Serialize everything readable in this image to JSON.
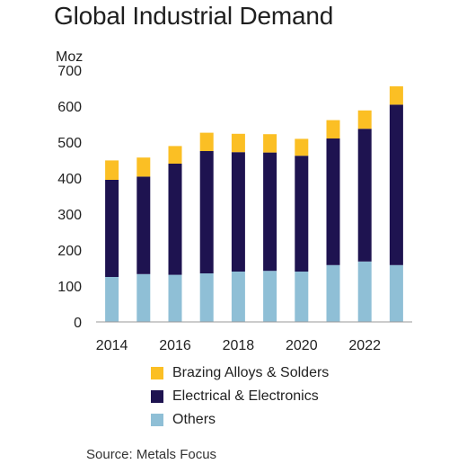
{
  "chart_data": {
    "type": "bar",
    "stacked": true,
    "title": "Global Industrial Demand",
    "ylabel": "Moz",
    "xlabel": "",
    "ylim": [
      0,
      700
    ],
    "yticks": [
      0,
      100,
      200,
      300,
      400,
      500,
      600,
      700
    ],
    "xtick_labels": [
      "2014",
      "2016",
      "2018",
      "2020",
      "2022"
    ],
    "categories": [
      "2014",
      "2015",
      "2016",
      "2017",
      "2018",
      "2019",
      "2020",
      "2021",
      "2022",
      "2023"
    ],
    "series": [
      {
        "name": "Others",
        "color": "#8fbfd6",
        "values": [
          125,
          133,
          131,
          135,
          140,
          142,
          140,
          158,
          168,
          158
        ]
      },
      {
        "name": "Electrical & Electronics",
        "color": "#1e1350",
        "values": [
          270,
          271,
          309,
          340,
          332,
          329,
          322,
          352,
          369,
          446
        ]
      },
      {
        "name": "Brazing Alloys & Solders",
        "color": "#fbbf24",
        "values": [
          54,
          53,
          49,
          51,
          51,
          51,
          47,
          51,
          51,
          51
        ]
      }
    ],
    "legend": {
      "placement": "bottom",
      "order": [
        "Brazing Alloys & Solders",
        "Electrical & Electronics",
        "Others"
      ]
    },
    "grid": false,
    "source": "Source: Metals Focus"
  }
}
